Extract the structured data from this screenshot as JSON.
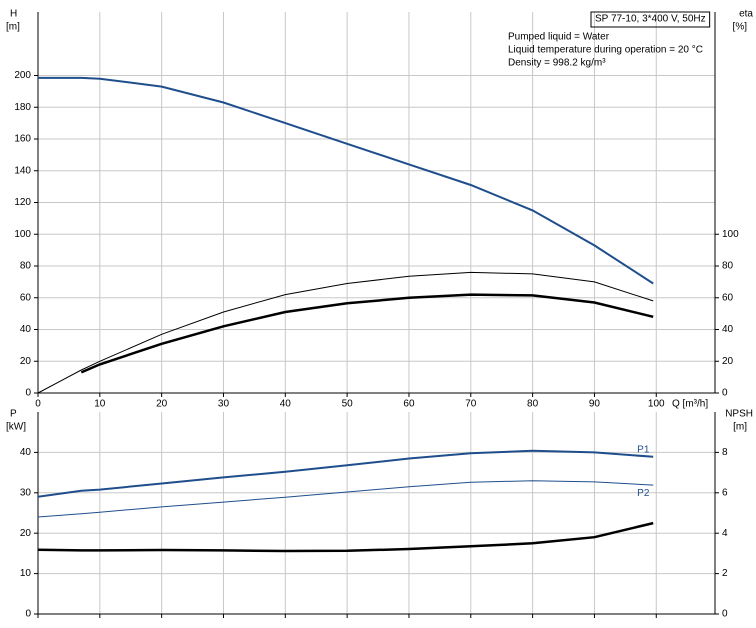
{
  "chart_data": [
    {
      "type": "line",
      "title": "SP 77-10, 3*400 V, 50Hz",
      "annotations": [
        "Pumped liquid = Water",
        "Liquid temperature during operation = 20 °C",
        "Density = 998.2 kg/m³"
      ],
      "xlabel": "Q [m³/h]",
      "ylabel": "H",
      "yunit": "[m]",
      "y2label": "eta",
      "y2unit": "[%]",
      "x": [
        0,
        7,
        10,
        20,
        30,
        40,
        50,
        60,
        70,
        80,
        90,
        99.5
      ],
      "xlim": [
        0,
        109.5
      ],
      "xticks": [
        0,
        10,
        20,
        30,
        40,
        50,
        60,
        70,
        80,
        90,
        100
      ],
      "ylim": [
        0,
        240
      ],
      "yticks": [
        0,
        20,
        40,
        60,
        80,
        100,
        120,
        140,
        160,
        180,
        200
      ],
      "y2lim": [
        0,
        240
      ],
      "y2ticks": [
        0,
        20,
        40,
        60,
        80,
        100
      ],
      "grid": true,
      "xtick_labels": true,
      "series": [
        {
          "color": "#1f4e8c",
          "values": [
            198.5,
            198.5,
            198,
            193,
            183,
            170,
            157,
            144,
            131,
            115,
            93,
            69
          ]
        },
        {
          "color": "#000000",
          "axis": "y2",
          "values": [
            0,
            14.5,
            20,
            37,
            51,
            62,
            69,
            73.5,
            76,
            75,
            70,
            58
          ]
        },
        {
          "color": "#000000",
          "axis": "y2",
          "values": [
            null,
            13,
            18,
            31,
            42,
            51,
            56.5,
            60,
            62,
            61.5,
            57,
            48
          ]
        }
      ]
    },
    {
      "type": "line",
      "ylabel": "P",
      "yunit": "[kW]",
      "y2label": "NPSH",
      "y2unit": "[m]",
      "x": [
        0,
        7,
        10,
        20,
        30,
        40,
        50,
        60,
        70,
        80,
        90,
        99.5
      ],
      "xlim": [
        0,
        109.5
      ],
      "xticks": [
        0,
        10,
        20,
        30,
        40,
        50,
        60,
        70,
        80,
        90,
        100
      ],
      "ylim": [
        0,
        50
      ],
      "yticks": [
        0,
        10,
        20,
        30,
        40
      ],
      "y2lim": [
        0,
        10
      ],
      "y2ticks": [
        0,
        2,
        4,
        6,
        8
      ],
      "grid": true,
      "xtick_labels": false,
      "series": [
        {
          "name": "P1",
          "color": "#1f4e8c",
          "values": [
            29,
            30.5,
            30.8,
            32.3,
            33.8,
            35.2,
            36.8,
            38.5,
            39.8,
            40.4,
            40,
            38.9
          ]
        },
        {
          "name": "P2",
          "color": "#1f4e8c",
          "values": [
            24,
            24.8,
            25.2,
            26.5,
            27.7,
            28.9,
            30.2,
            31.5,
            32.6,
            33,
            32.7,
            31.9
          ]
        },
        {
          "color": "#000000",
          "axis": "y2",
          "values": [
            3.18,
            3.15,
            3.15,
            3.17,
            3.15,
            3.12,
            3.13,
            3.22,
            3.35,
            3.5,
            3.8,
            4.5
          ]
        }
      ]
    }
  ]
}
